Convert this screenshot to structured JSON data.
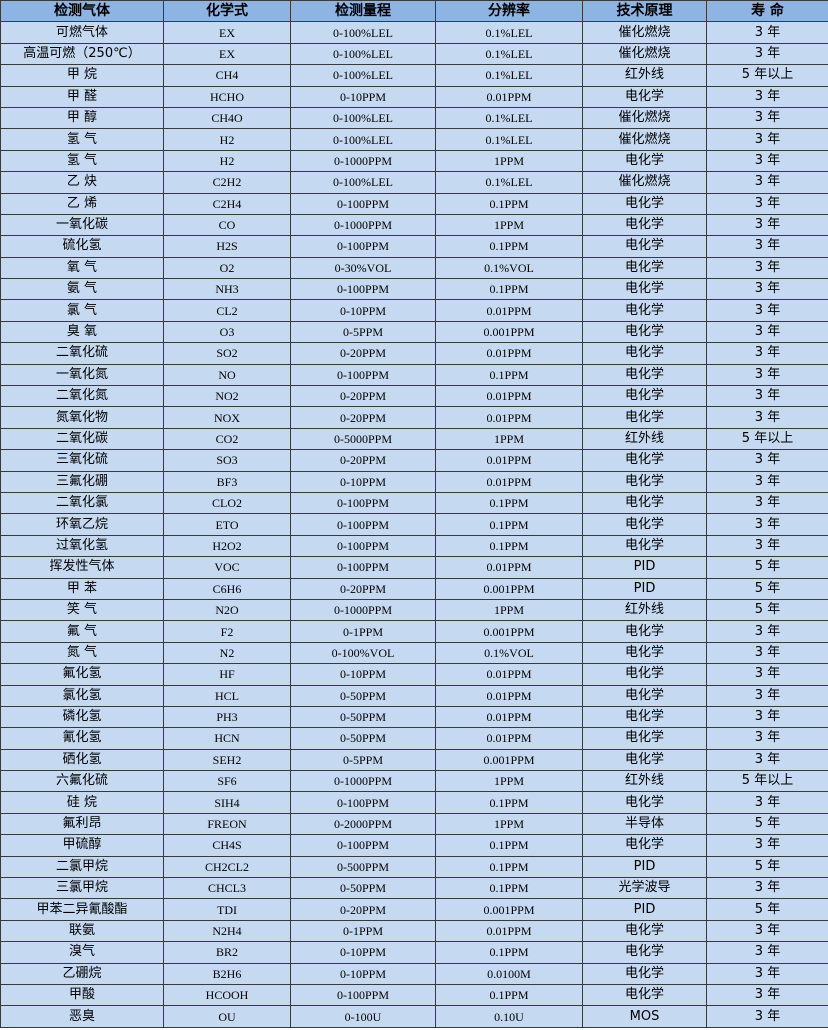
{
  "colors": {
    "header_bg": "#8db4e2",
    "row_bg": "#c5d9f1",
    "border": "#3a3a3a"
  },
  "headers": [
    "检测气体",
    "化学式",
    "检测量程",
    "分辨率",
    "技术原理",
    "寿 命"
  ],
  "rows": [
    [
      "可燃气体",
      "EX",
      "0-100%LEL",
      "0.1%LEL",
      "催化燃烧",
      "3 年"
    ],
    [
      "高温可燃（250℃）",
      "EX",
      "0-100%LEL",
      "0.1%LEL",
      "催化燃烧",
      "3 年"
    ],
    [
      "甲 烷",
      "CH4",
      "0-100%LEL",
      "0.1%LEL",
      "红外线",
      "5 年以上"
    ],
    [
      "甲 醛",
      "HCHO",
      "0-10PPM",
      "0.01PPM",
      "电化学",
      "3 年"
    ],
    [
      "甲 醇",
      "CH4O",
      "0-100%LEL",
      "0.1%LEL",
      "催化燃烧",
      "3 年"
    ],
    [
      "氢 气",
      "H2",
      "0-100%LEL",
      "0.1%LEL",
      "催化燃烧",
      "3 年"
    ],
    [
      "氢 气",
      "H2",
      "0-1000PPM",
      "1PPM",
      "电化学",
      "3 年"
    ],
    [
      "乙 炔",
      "C2H2",
      "0-100%LEL",
      "0.1%LEL",
      "催化燃烧",
      "3 年"
    ],
    [
      "乙 烯",
      "C2H4",
      "0-100PPM",
      "0.1PPM",
      "电化学",
      "3 年"
    ],
    [
      "一氧化碳",
      "CO",
      "0-1000PPM",
      "1PPM",
      "电化学",
      "3 年"
    ],
    [
      "硫化氢",
      "H2S",
      "0-100PPM",
      "0.1PPM",
      "电化学",
      "3 年"
    ],
    [
      "氧 气",
      "O2",
      "0-30%VOL",
      "0.1%VOL",
      "电化学",
      "3 年"
    ],
    [
      "氨 气",
      "NH3",
      "0-100PPM",
      "0.1PPM",
      "电化学",
      "3 年"
    ],
    [
      "氯 气",
      "CL2",
      "0-10PPM",
      "0.01PPM",
      "电化学",
      "3 年"
    ],
    [
      "臭 氧",
      "O3",
      "0-5PPM",
      "0.001PPM",
      "电化学",
      "3 年"
    ],
    [
      "二氧化硫",
      "SO2",
      "0-20PPM",
      "0.01PPM",
      "电化学",
      "3 年"
    ],
    [
      "一氧化氮",
      "NO",
      "0-100PPM",
      "0.1PPM",
      "电化学",
      "3 年"
    ],
    [
      "二氧化氮",
      "NO2",
      "0-20PPM",
      "0.01PPM",
      "电化学",
      "3 年"
    ],
    [
      "氮氧化物",
      "NOX",
      "0-20PPM",
      "0.01PPM",
      "电化学",
      "3 年"
    ],
    [
      "二氧化碳",
      "CO2",
      "0-5000PPM",
      "1PPM",
      "红外线",
      "5 年以上"
    ],
    [
      "三氧化硫",
      "SO3",
      "0-20PPM",
      "0.01PPM",
      "电化学",
      "3 年"
    ],
    [
      "三氟化硼",
      "BF3",
      "0-10PPM",
      "0.01PPM",
      "电化学",
      "3 年"
    ],
    [
      "二氧化氯",
      "CLO2",
      "0-100PPM",
      "0.1PPM",
      "电化学",
      "3 年"
    ],
    [
      "环氧乙烷",
      "ETO",
      "0-100PPM",
      "0.1PPM",
      "电化学",
      "3 年"
    ],
    [
      "过氧化氢",
      "H2O2",
      "0-100PPM",
      "0.1PPM",
      "电化学",
      "3 年"
    ],
    [
      "挥发性气体",
      "VOC",
      "0-100PPM",
      "0.01PPM",
      "PID",
      "5 年"
    ],
    [
      "甲 苯",
      "C6H6",
      "0-20PPM",
      "0.001PPM",
      "PID",
      "5 年"
    ],
    [
      "笑 气",
      "N2O",
      "0-1000PPM",
      "1PPM",
      "红外线",
      "5 年"
    ],
    [
      "氟 气",
      "F2",
      "0-1PPM",
      "0.001PPM",
      "电化学",
      "3 年"
    ],
    [
      "氮 气",
      "N2",
      "0-100%VOL",
      "0.1%VOL",
      "电化学",
      "3 年"
    ],
    [
      "氟化氢",
      "HF",
      "0-10PPM",
      "0.01PPM",
      "电化学",
      "3 年"
    ],
    [
      "氯化氢",
      "HCL",
      "0-50PPM",
      "0.01PPM",
      "电化学",
      "3 年"
    ],
    [
      "磷化氢",
      "PH3",
      "0-50PPM",
      "0.01PPM",
      "电化学",
      "3 年"
    ],
    [
      "氰化氢",
      "HCN",
      "0-50PPM",
      "0.01PPM",
      "电化学",
      "3 年"
    ],
    [
      "硒化氢",
      "SEH2",
      "0-5PPM",
      "0.001PPM",
      "电化学",
      "3 年"
    ],
    [
      "六氟化硫",
      "SF6",
      "0-1000PPM",
      "1PPM",
      "红外线",
      "5 年以上"
    ],
    [
      "硅 烷",
      "SIH4",
      "0-100PPM",
      "0.1PPM",
      "电化学",
      "3 年"
    ],
    [
      "氟利昂",
      "FREON",
      "0-2000PPM",
      "1PPM",
      "半导体",
      "5 年"
    ],
    [
      "甲硫醇",
      "CH4S",
      "0-100PPM",
      "0.1PPM",
      "电化学",
      "3 年"
    ],
    [
      "二氯甲烷",
      "CH2CL2",
      "0-500PPM",
      "0.1PPM",
      "PID",
      "5 年"
    ],
    [
      "三氯甲烷",
      "CHCL3",
      "0-50PPM",
      "0.1PPM",
      "光学波导",
      "3 年"
    ],
    [
      "甲苯二异氰酸酯",
      "TDI",
      "0-20PPM",
      "0.001PPM",
      "PID",
      "5 年"
    ],
    [
      "联氨",
      "N2H4",
      "0-1PPM",
      "0.01PPM",
      "电化学",
      "3 年"
    ],
    [
      "溴气",
      "BR2",
      "0-10PPM",
      "0.1PPM",
      "电化学",
      "3 年"
    ],
    [
      "乙硼烷",
      "B2H6",
      "0-10PPM",
      "0.0100M",
      "电化学",
      "3 年"
    ],
    [
      "甲酸",
      "HCOOH",
      "0-100PPM",
      "0.1PPM",
      "电化学",
      "3 年"
    ],
    [
      "恶臭",
      "OU",
      "0-100U",
      "0.10U",
      "MOS",
      "3 年"
    ]
  ]
}
